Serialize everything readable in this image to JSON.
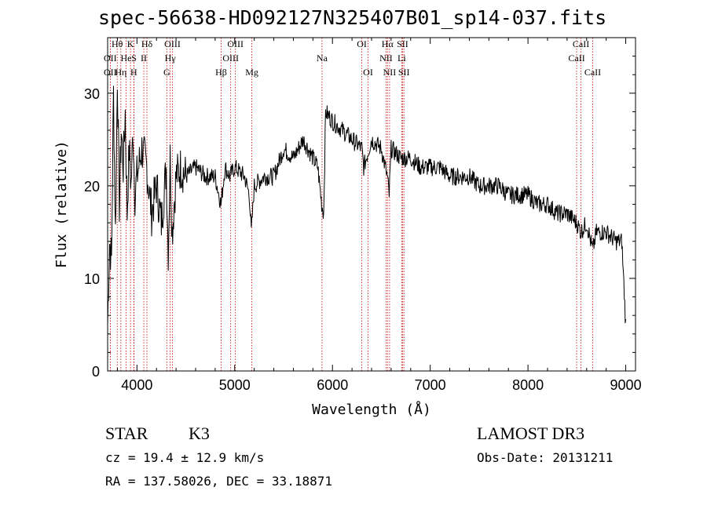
{
  "title": "spec-56638-HD092127N325407B01_sp14-037.fits",
  "info": {
    "class_label": "STAR",
    "subclass": "K3",
    "survey": "LAMOST DR3",
    "cz": "cz = 19.4 ± 12.9 km/s",
    "obs_date": "Obs-Date: 20131211",
    "coords": "RA = 137.58026, DEC =  33.18871"
  },
  "chart_data": {
    "type": "line",
    "xlabel": "Wavelength (Å)",
    "ylabel": "Flux (relative)",
    "xlim": [
      3700,
      9100
    ],
    "ylim": [
      0,
      36
    ],
    "xticks": [
      4000,
      5000,
      6000,
      7000,
      8000,
      9000
    ],
    "yticks": [
      0,
      10,
      20,
      30
    ],
    "series": [
      {
        "x": [
          3700,
          3720,
          3740,
          3760,
          3780,
          3800,
          3820,
          3840,
          3860,
          3880,
          3900,
          3920,
          3940,
          3960,
          3980,
          4000,
          4050,
          4100,
          4150,
          4200,
          4250,
          4300,
          4320,
          4340,
          4360,
          4400,
          4450,
          4500,
          4600,
          4700,
          4800,
          4860,
          4900,
          4950,
          5000,
          5100,
          5150,
          5170,
          5200,
          5300,
          5400,
          5500,
          5600,
          5700,
          5800,
          5850,
          5890,
          5910,
          5930,
          6000,
          6100,
          6200,
          6300,
          6320,
          6400,
          6500,
          6560,
          6580,
          6600,
          6700,
          6800,
          6900,
          7000,
          7100,
          7200,
          7300,
          7400,
          7500,
          7600,
          7700,
          7800,
          7900,
          8000,
          8100,
          8200,
          8300,
          8400,
          8498,
          8542,
          8600,
          8662,
          8700,
          8800,
          8900,
          8960,
          9000
        ],
        "y": [
          5,
          14,
          12,
          30,
          15,
          32,
          18,
          26,
          22,
          28,
          17,
          24,
          20,
          26,
          19,
          21,
          24,
          22,
          17,
          20,
          16,
          22,
          13,
          23,
          15,
          21,
          22,
          21,
          22,
          21,
          21,
          18,
          22,
          21,
          22,
          21,
          19,
          15,
          20,
          21,
          21,
          24,
          23,
          25,
          23,
          22,
          18,
          17,
          28,
          27,
          26,
          25,
          24,
          22,
          25,
          24,
          21,
          19,
          24,
          23,
          23,
          22,
          22,
          22,
          21,
          21,
          21,
          20,
          20,
          20,
          19,
          19,
          19,
          18,
          18,
          17,
          17,
          16,
          15,
          16,
          13,
          15,
          15,
          14,
          14,
          5
        ]
      }
    ],
    "lines": [
      {
        "label": "Hθ",
        "wl": 3798,
        "row": 1
      },
      {
        "label": "OII",
        "wl": 3727,
        "row": 2
      },
      {
        "label": "OII",
        "wl": 3727,
        "row": 3
      },
      {
        "label": "He",
        "wl": 3889,
        "row": 2
      },
      {
        "label": "Hη",
        "wl": 3835,
        "row": 3
      },
      {
        "label": "K",
        "wl": 3934,
        "row": 1
      },
      {
        "label": "S",
        "wl": 3970,
        "row": 2
      },
      {
        "label": "H",
        "wl": 3968,
        "row": 3
      },
      {
        "label": "Hδ",
        "wl": 4102,
        "row": 1
      },
      {
        "label": "II",
        "wl": 4070,
        "row": 2
      },
      {
        "label": "OIII",
        "wl": 4363,
        "row": 1
      },
      {
        "label": "Hγ",
        "wl": 4340,
        "row": 2
      },
      {
        "label": "G",
        "wl": 4305,
        "row": 3
      },
      {
        "label": "Hβ",
        "wl": 4861,
        "row": 3
      },
      {
        "label": "OIII",
        "wl": 5007,
        "row": 1
      },
      {
        "label": "OIII",
        "wl": 4959,
        "row": 2
      },
      {
        "label": "Mg",
        "wl": 5175,
        "row": 3
      },
      {
        "label": "Na",
        "wl": 5893,
        "row": 2
      },
      {
        "label": "OI",
        "wl": 6300,
        "row": 1
      },
      {
        "label": "OI",
        "wl": 6364,
        "row": 3
      },
      {
        "label": "Hα",
        "wl": 6563,
        "row": 1
      },
      {
        "label": "NII",
        "wl": 6548,
        "row": 2
      },
      {
        "label": "NII",
        "wl": 6584,
        "row": 3
      },
      {
        "label": "SII",
        "wl": 6717,
        "row": 1
      },
      {
        "label": "Li",
        "wl": 6708,
        "row": 2
      },
      {
        "label": "SII",
        "wl": 6731,
        "row": 3
      },
      {
        "label": "CaII",
        "wl": 8542,
        "row": 1
      },
      {
        "label": "CaII",
        "wl": 8498,
        "row": 2
      },
      {
        "label": "CaII",
        "wl": 8662,
        "row": 3
      }
    ]
  },
  "colors": {
    "spectrum": "#000000",
    "line_marker": "#cc0000",
    "axis": "#000000"
  }
}
